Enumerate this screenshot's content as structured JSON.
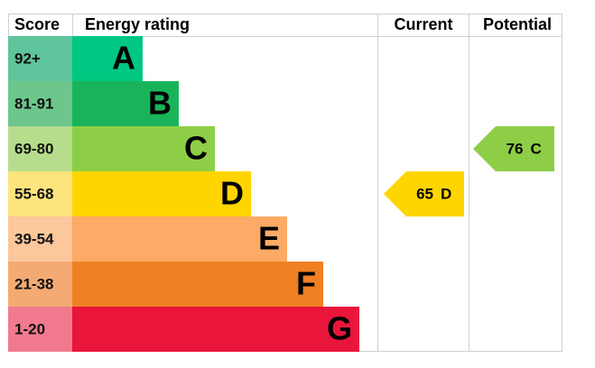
{
  "header": {
    "score": "Score",
    "rating": "Energy rating",
    "current": "Current",
    "potential": "Potential"
  },
  "rows": [
    {
      "score": "92+",
      "letter": "A",
      "score_color": "#5ec49c",
      "bar_color": "#00c781"
    },
    {
      "score": "81-91",
      "letter": "B",
      "score_color": "#6dc78c",
      "bar_color": "#19b459"
    },
    {
      "score": "69-80",
      "letter": "C",
      "score_color": "#b6dd8c",
      "bar_color": "#8dce46"
    },
    {
      "score": "55-68",
      "letter": "D",
      "score_color": "#fde47c",
      "bar_color": "#ffd500"
    },
    {
      "score": "39-54",
      "letter": "E",
      "score_color": "#fcc79b",
      "bar_color": "#fcaa65"
    },
    {
      "score": "21-38",
      "letter": "F",
      "score_color": "#f3ab73",
      "bar_color": "#ef8023"
    },
    {
      "score": "1-20",
      "letter": "G",
      "score_color": "#f27a8f",
      "bar_color": "#e9153b"
    }
  ],
  "current": {
    "value": 65,
    "letter": "D"
  },
  "potential": {
    "value": 76,
    "letter": "C"
  }
}
